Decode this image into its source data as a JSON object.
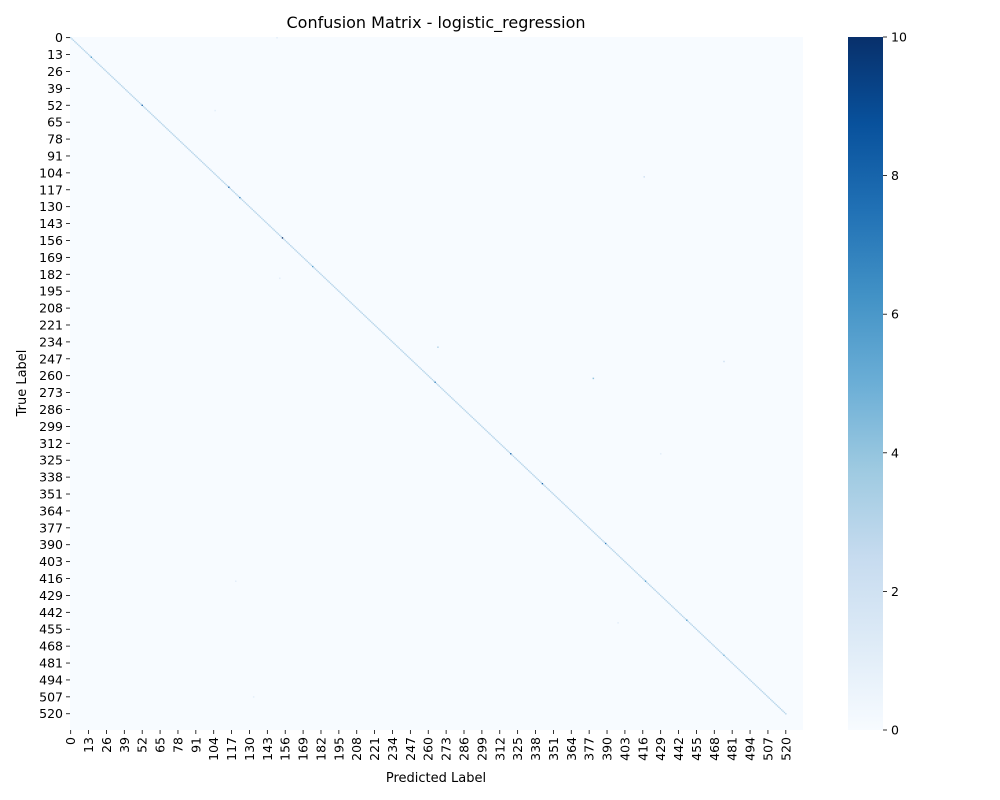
{
  "chart_data": {
    "type": "heatmap",
    "title": "Confusion Matrix - logistic_regression",
    "xlabel": "Predicted Label",
    "ylabel": "True Label",
    "n_classes": 533,
    "tick_step": 13,
    "tick_labels": [
      "0",
      "13",
      "26",
      "39",
      "52",
      "65",
      "78",
      "91",
      "104",
      "117",
      "130",
      "143",
      "156",
      "169",
      "182",
      "195",
      "208",
      "221",
      "234",
      "247",
      "260",
      "273",
      "286",
      "299",
      "312",
      "325",
      "338",
      "351",
      "364",
      "377",
      "390",
      "403",
      "416",
      "429",
      "442",
      "455",
      "468",
      "481",
      "494",
      "507",
      "520"
    ],
    "colorbar": {
      "min": 0,
      "max": 10,
      "ticks": [
        "0",
        "2",
        "4",
        "6",
        "8",
        "10"
      ],
      "colormap": "Blues"
    },
    "diagonal": [
      {
        "from": 0,
        "to": 520,
        "value": 3
      },
      {
        "class": 15,
        "value": 6
      },
      {
        "class": 52,
        "value": 8
      },
      {
        "class": 115,
        "value": 8
      },
      {
        "class": 123,
        "value": 7
      },
      {
        "class": 154,
        "value": 10
      },
      {
        "class": 176,
        "value": 6
      },
      {
        "class": 265,
        "value": 7
      },
      {
        "class": 320,
        "value": 8
      },
      {
        "class": 343,
        "value": 8
      },
      {
        "class": 389,
        "value": 7
      },
      {
        "class": 418,
        "value": 6
      },
      {
        "class": 448,
        "value": 6
      },
      {
        "class": 475,
        "value": 5
      }
    ],
    "off_diagonal": [
      {
        "true": 0,
        "pred": 150,
        "value": 1
      },
      {
        "true": 56,
        "pred": 105,
        "value": 1
      },
      {
        "true": 107,
        "pred": 417,
        "value": 2
      },
      {
        "true": 185,
        "pred": 152,
        "value": 1
      },
      {
        "true": 238,
        "pred": 267,
        "value": 3
      },
      {
        "true": 249,
        "pred": 475,
        "value": 2
      },
      {
        "true": 262,
        "pred": 380,
        "value": 4
      },
      {
        "true": 320,
        "pred": 429,
        "value": 1
      },
      {
        "true": 418,
        "pred": 120,
        "value": 1
      },
      {
        "true": 450,
        "pred": 398,
        "value": 1
      },
      {
        "true": 507,
        "pred": 133,
        "value": 1
      }
    ],
    "colors": {
      "low": "#f7fbff",
      "high": "#08306b"
    }
  }
}
